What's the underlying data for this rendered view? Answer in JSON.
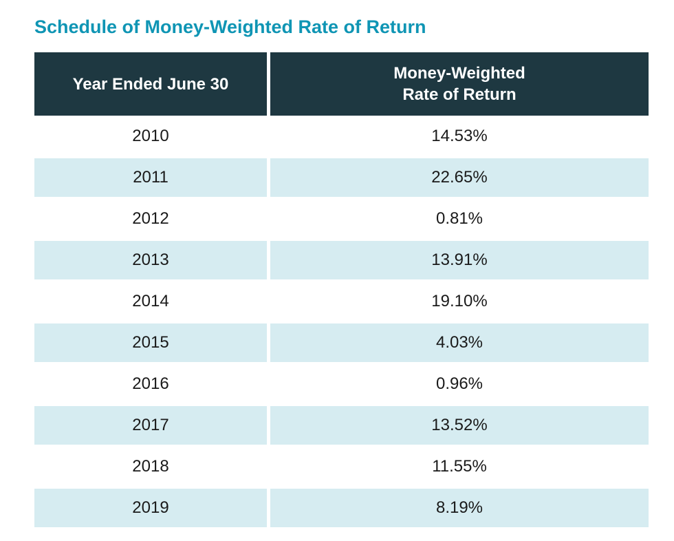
{
  "title": "Schedule of Money-Weighted Rate of Return",
  "colors": {
    "title_accent": "#0f95b4",
    "header_bg": "#1e3841",
    "header_text": "#ffffff",
    "row_alt_bg": "#d6ecf1",
    "body_text": "#1a1a1a"
  },
  "table": {
    "columns": {
      "year": "Year Ended June 30",
      "return": "Money-Weighted\nRate of Return"
    },
    "rows": [
      {
        "year": "2010",
        "value": "14.53%"
      },
      {
        "year": "2011",
        "value": "22.65%"
      },
      {
        "year": "2012",
        "value": "0.81%"
      },
      {
        "year": "2013",
        "value": "13.91%"
      },
      {
        "year": "2014",
        "value": "19.10%"
      },
      {
        "year": "2015",
        "value": "4.03%"
      },
      {
        "year": "2016",
        "value": "0.96%"
      },
      {
        "year": "2017",
        "value": "13.52%"
      },
      {
        "year": "2018",
        "value": "11.55%"
      },
      {
        "year": "2019",
        "value": "8.19%"
      }
    ]
  }
}
